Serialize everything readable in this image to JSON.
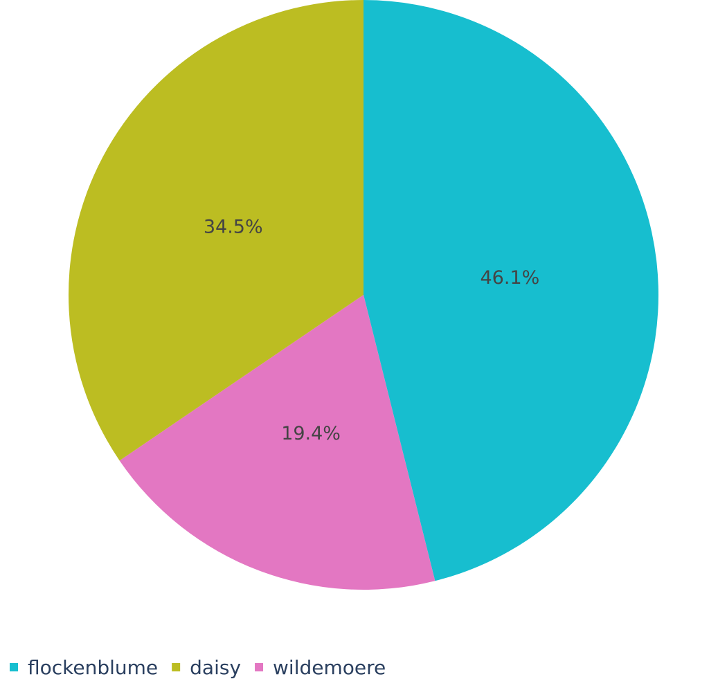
{
  "chart_data": {
    "type": "pie",
    "labels": [
      "flockenblume",
      "wildemoere",
      "daisy"
    ],
    "values": [
      46.1,
      19.4,
      34.5
    ],
    "value_labels": [
      "46.1%",
      "19.4%",
      "34.5%"
    ],
    "colors": [
      "#17becf",
      "#e377c2",
      "#bcbd22"
    ],
    "direction": "clockwise",
    "start": "top",
    "legend": {
      "placement": "bottom-left",
      "orientation": "horizontal",
      "entries": [
        {
          "label": "flockenblume",
          "color": "#17becf"
        },
        {
          "label": "daisy",
          "color": "#bcbd22"
        },
        {
          "label": "wildemoere",
          "color": "#e377c2"
        }
      ]
    }
  }
}
